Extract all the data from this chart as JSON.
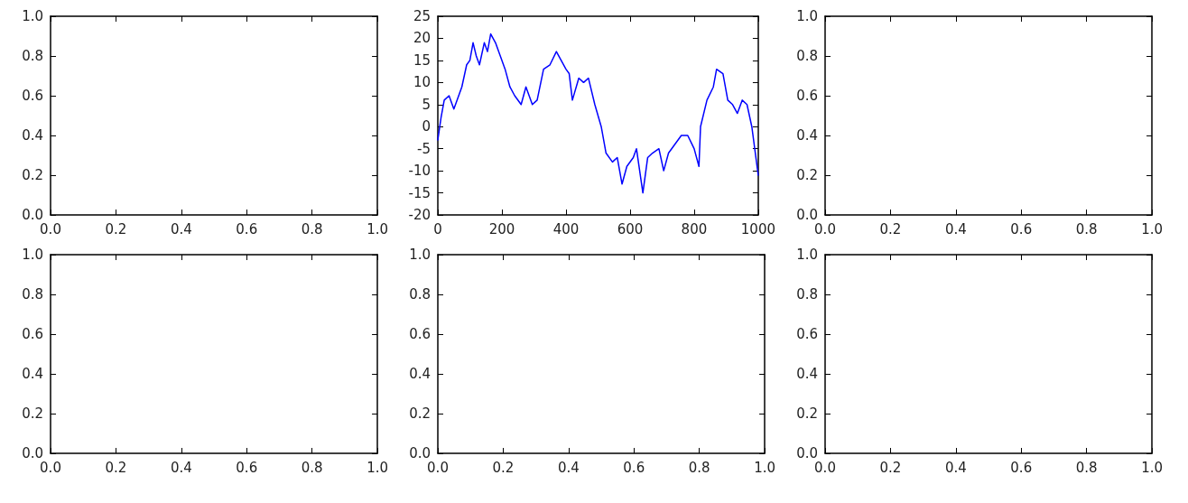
{
  "chart_data": [
    {
      "type": "line",
      "xlim": [
        0,
        1
      ],
      "ylim": [
        0,
        1
      ],
      "xticks": [
        {
          "value": 0,
          "label": "0.0"
        },
        {
          "value": 0.2,
          "label": "0.2"
        },
        {
          "value": 0.4,
          "label": "0.4"
        },
        {
          "value": 0.6,
          "label": "0.6"
        },
        {
          "value": 0.8,
          "label": "0.8"
        },
        {
          "value": 1,
          "label": "1.0"
        }
      ],
      "yticks": [
        {
          "value": 0,
          "label": "0.0"
        },
        {
          "value": 0.2,
          "label": "0.2"
        },
        {
          "value": 0.4,
          "label": "0.4"
        },
        {
          "value": 0.6,
          "label": "0.6"
        },
        {
          "value": 0.8,
          "label": "0.8"
        },
        {
          "value": 1,
          "label": "1.0"
        }
      ],
      "grid": false
    },
    {
      "type": "line",
      "xlim": [
        0,
        1000
      ],
      "ylim": [
        -20,
        25
      ],
      "xticks": [
        0,
        200,
        400,
        600,
        800,
        1000
      ],
      "yticks": [
        -20,
        -15,
        -10,
        -5,
        0,
        5,
        10,
        15,
        20,
        25
      ],
      "grid": false,
      "marker": "none",
      "line_style": "solid",
      "series": [
        {
          "color": "#0000ff",
          "x": [
            0,
            10,
            20,
            35,
            50,
            60,
            75,
            90,
            100,
            110,
            120,
            130,
            145,
            155,
            165,
            180,
            195,
            210,
            225,
            240,
            260,
            275,
            295,
            310,
            330,
            350,
            370,
            385,
            400,
            410,
            420,
            440,
            455,
            470,
            490,
            510,
            525,
            545,
            560,
            575,
            590,
            610,
            620,
            640,
            655,
            670,
            690,
            705,
            720,
            740,
            760,
            780,
            800,
            815,
            820,
            840,
            860,
            870,
            890,
            905,
            920,
            935,
            950,
            965,
            980,
            1000
          ],
          "values": [
            -3,
            2,
            6,
            7,
            4,
            6,
            9,
            14,
            15,
            19,
            16,
            14,
            19,
            17,
            21,
            19,
            16,
            13,
            9,
            7,
            5,
            9,
            5,
            6,
            13,
            14,
            17,
            15,
            13,
            12,
            6,
            11,
            10,
            11,
            5,
            0,
            -6,
            -8,
            -7,
            -13,
            -9,
            -7,
            -5,
            -15,
            -7,
            -6,
            -5,
            -10,
            -6,
            -4,
            -2,
            -2,
            -5,
            -9,
            0,
            6,
            9,
            13,
            12,
            6,
            5,
            3,
            6,
            5,
            0,
            -11
          ]
        }
      ]
    },
    {
      "type": "line",
      "xlim": [
        0,
        1
      ],
      "ylim": [
        0,
        1
      ],
      "xticks": [
        {
          "value": 0,
          "label": "0.0"
        },
        {
          "value": 0.2,
          "label": "0.2"
        },
        {
          "value": 0.4,
          "label": "0.4"
        },
        {
          "value": 0.6,
          "label": "0.6"
        },
        {
          "value": 0.8,
          "label": "0.8"
        },
        {
          "value": 1,
          "label": "1.0"
        }
      ],
      "yticks": [
        {
          "value": 0,
          "label": "0.0"
        },
        {
          "value": 0.2,
          "label": "0.2"
        },
        {
          "value": 0.4,
          "label": "0.4"
        },
        {
          "value": 0.6,
          "label": "0.6"
        },
        {
          "value": 0.8,
          "label": "0.8"
        },
        {
          "value": 1,
          "label": "1.0"
        }
      ],
      "grid": false
    },
    {
      "type": "line",
      "xlim": [
        0,
        1
      ],
      "ylim": [
        0,
        1
      ],
      "xticks": [
        {
          "value": 0,
          "label": "0.0"
        },
        {
          "value": 0.2,
          "label": "0.2"
        },
        {
          "value": 0.4,
          "label": "0.4"
        },
        {
          "value": 0.6,
          "label": "0.6"
        },
        {
          "value": 0.8,
          "label": "0.8"
        },
        {
          "value": 1,
          "label": "1.0"
        }
      ],
      "yticks": [
        {
          "value": 0,
          "label": "0.0"
        },
        {
          "value": 0.2,
          "label": "0.2"
        },
        {
          "value": 0.4,
          "label": "0.4"
        },
        {
          "value": 0.6,
          "label": "0.6"
        },
        {
          "value": 0.8,
          "label": "0.8"
        },
        {
          "value": 1,
          "label": "1.0"
        }
      ],
      "grid": false
    },
    {
      "type": "line",
      "xlim": [
        0,
        1
      ],
      "ylim": [
        0,
        1
      ],
      "xticks": [
        {
          "value": 0,
          "label": "0.0"
        },
        {
          "value": 0.2,
          "label": "0.2"
        },
        {
          "value": 0.4,
          "label": "0.4"
        },
        {
          "value": 0.6,
          "label": "0.6"
        },
        {
          "value": 0.8,
          "label": "0.8"
        },
        {
          "value": 1,
          "label": "1.0"
        }
      ],
      "yticks": [
        {
          "value": 0,
          "label": "0.0"
        },
        {
          "value": 0.2,
          "label": "0.2"
        },
        {
          "value": 0.4,
          "label": "0.4"
        },
        {
          "value": 0.6,
          "label": "0.6"
        },
        {
          "value": 0.8,
          "label": "0.8"
        },
        {
          "value": 1,
          "label": "1.0"
        }
      ],
      "grid": false
    },
    {
      "type": "line",
      "xlim": [
        0,
        1
      ],
      "ylim": [
        0,
        1
      ],
      "xticks": [
        {
          "value": 0,
          "label": "0.0"
        },
        {
          "value": 0.2,
          "label": "0.2"
        },
        {
          "value": 0.4,
          "label": "0.4"
        },
        {
          "value": 0.6,
          "label": "0.6"
        },
        {
          "value": 0.8,
          "label": "0.8"
        },
        {
          "value": 1,
          "label": "1.0"
        }
      ],
      "yticks": [
        {
          "value": 0,
          "label": "0.0"
        },
        {
          "value": 0.2,
          "label": "0.2"
        },
        {
          "value": 0.4,
          "label": "0.4"
        },
        {
          "value": 0.6,
          "label": "0.6"
        },
        {
          "value": 0.8,
          "label": "0.8"
        },
        {
          "value": 1,
          "label": "1.0"
        }
      ],
      "grid": false
    }
  ]
}
